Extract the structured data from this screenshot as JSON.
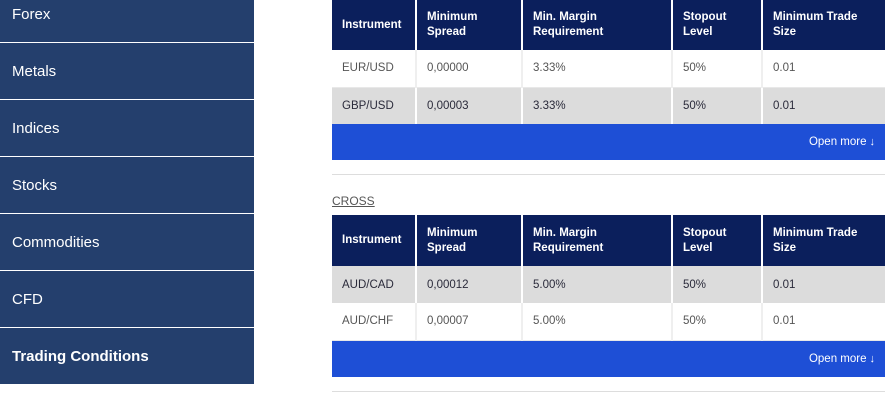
{
  "sidebar": {
    "items": [
      {
        "label": "Forex"
      },
      {
        "label": "Metals"
      },
      {
        "label": "Indices"
      },
      {
        "label": "Stocks"
      },
      {
        "label": "Commodities"
      },
      {
        "label": "CFD"
      },
      {
        "label": "Trading Conditions"
      }
    ]
  },
  "columns": {
    "instrument": "Instrument",
    "min_spread_1": "Minimum",
    "min_spread_2": "Spread",
    "margin_1": "Min. Margin",
    "margin_2": "Requirement",
    "stopout_1": "Stopout",
    "stopout_2": "Level",
    "trade_1": "Minimum Trade",
    "trade_2": "Size"
  },
  "table1": {
    "rows": [
      {
        "instrument": "EUR/USD",
        "spread": "0,00000",
        "margin": "3.33%",
        "stopout": "50%",
        "trade": "0.01"
      },
      {
        "instrument": "GBP/USD",
        "spread": "0,00003",
        "margin": "3.33%",
        "stopout": "50%",
        "trade": "0.01"
      }
    ],
    "open_more": "Open more",
    "open_more_arrow": "↓"
  },
  "cross": {
    "title": "CROSS",
    "rows": [
      {
        "instrument": "AUD/CAD",
        "spread": "0,00012",
        "margin": "5.00%",
        "stopout": "50%",
        "trade": "0.01"
      },
      {
        "instrument": "AUD/CHF",
        "spread": "0,00007",
        "margin": "5.00%",
        "stopout": "50%",
        "trade": "0.01"
      }
    ],
    "open_more": "Open more",
    "open_more_arrow": "↓"
  },
  "colors": {
    "sidebar_bg": "#243f6d",
    "table_header_bg": "#0b1f5c",
    "open_more_bg": "#1e4fd6",
    "row_alt_bg": "#dcdcdc"
  }
}
